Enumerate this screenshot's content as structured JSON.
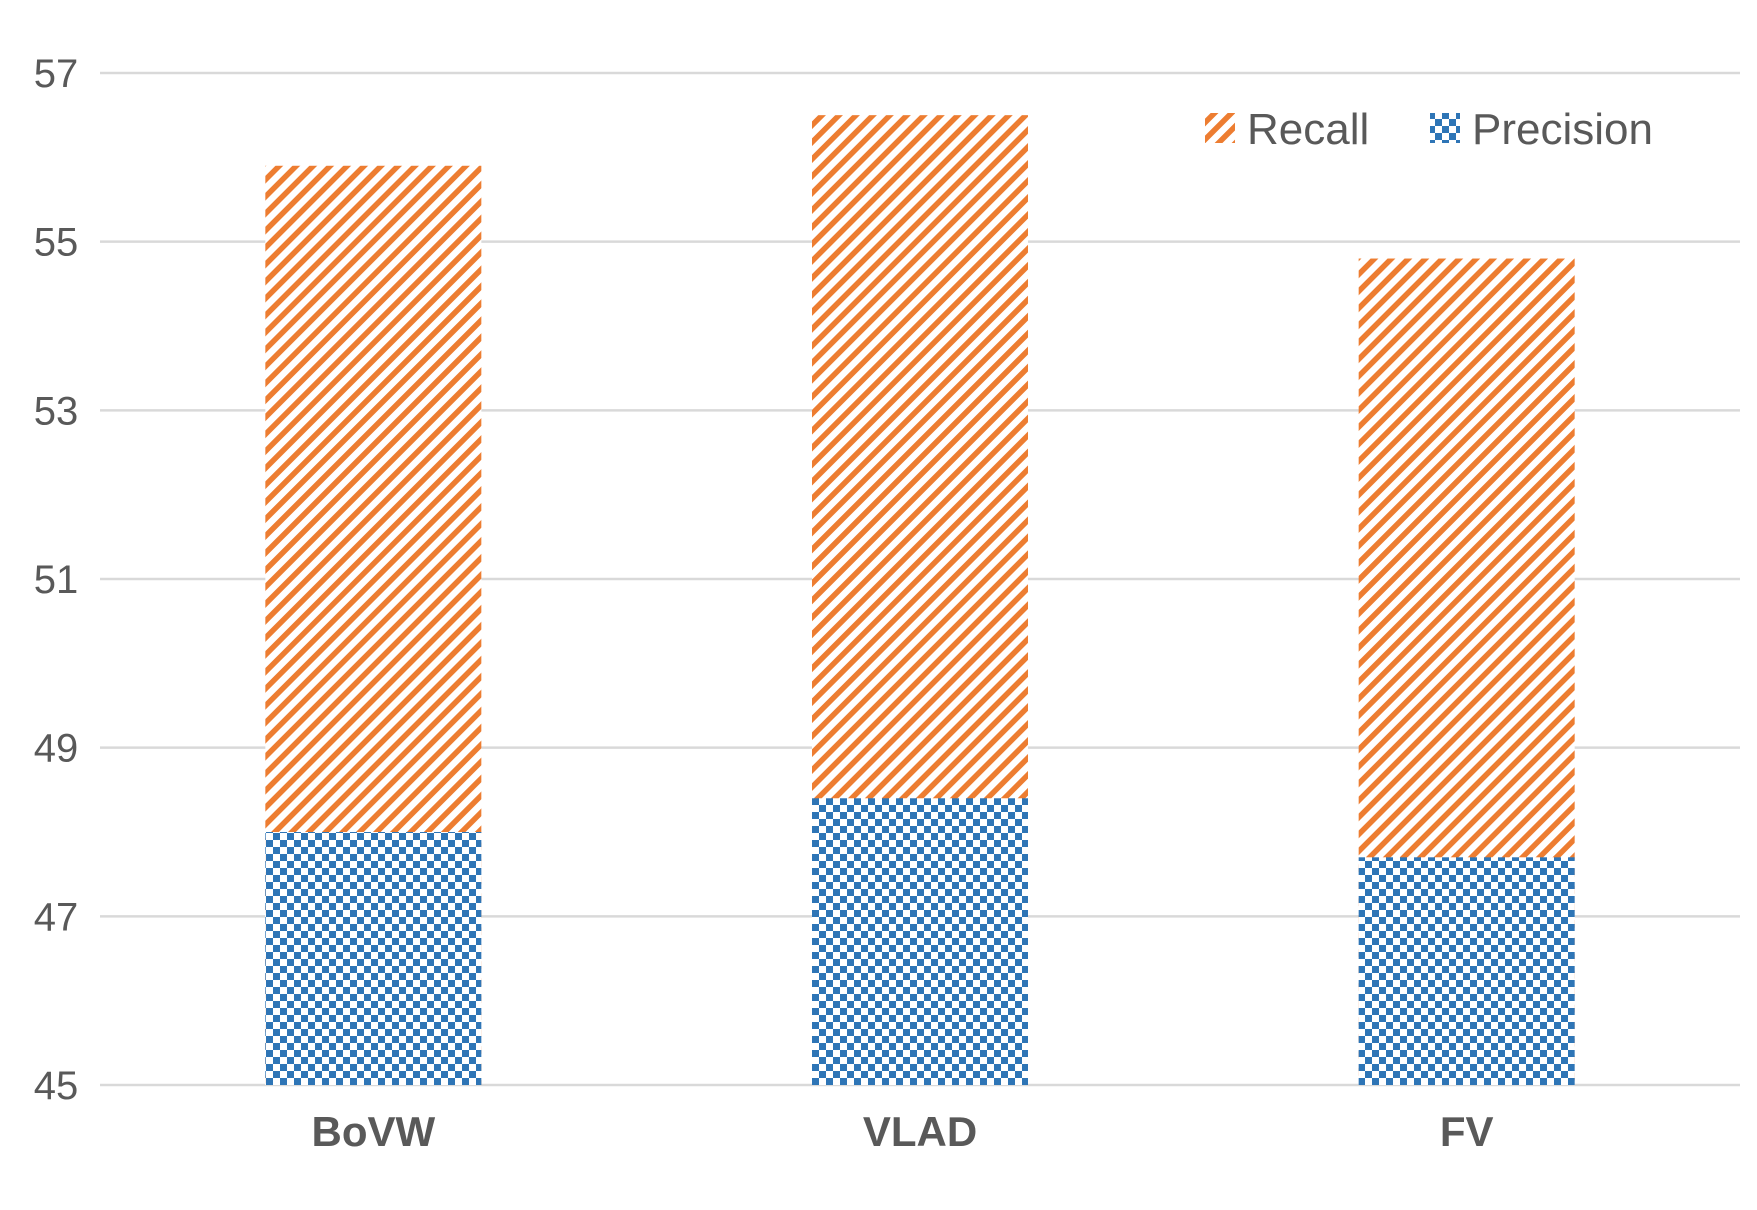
{
  "chart_data": {
    "type": "bar",
    "stacked": false,
    "overlapping": true,
    "categories": [
      "BoVW",
      "VLAD",
      "FV"
    ],
    "series": [
      {
        "name": "Recall",
        "values": [
          55.9,
          56.5,
          54.8
        ],
        "color": "#ED7D31",
        "pattern": "diagonal-stripes"
      },
      {
        "name": "Precision",
        "values": [
          48.0,
          48.4,
          47.7
        ],
        "color": "#2E75B6",
        "pattern": "checkerboard"
      }
    ],
    "ylim": [
      45,
      57
    ],
    "yticks": [
      45,
      47,
      49,
      51,
      53,
      55,
      57
    ],
    "ytick_labels": [
      "45",
      "47",
      "49",
      "51",
      "53",
      "55",
      "57"
    ],
    "title": "",
    "xlabel": "",
    "ylabel": "",
    "grid": "horizontal",
    "legend_position": "top-right"
  }
}
